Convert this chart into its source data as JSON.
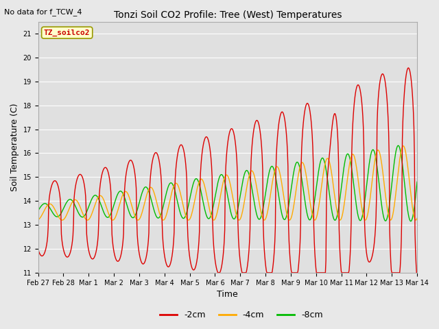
{
  "title": "Tonzi Soil CO2 Profile: Tree (West) Temperatures",
  "subtitle": "No data for f_TCW_4",
  "xlabel": "Time",
  "ylabel": "Soil Temperature (C)",
  "ylim": [
    11.0,
    21.5
  ],
  "yticks": [
    11.0,
    12.0,
    13.0,
    14.0,
    15.0,
    16.0,
    17.0,
    18.0,
    19.0,
    20.0,
    21.0
  ],
  "legend_label_box": "TZ_soilco2",
  "series": {
    "2cm": {
      "color": "#dd0000",
      "label": "-2cm",
      "linewidth": 1.0
    },
    "4cm": {
      "color": "#ffaa00",
      "label": "-4cm",
      "linewidth": 1.0
    },
    "8cm": {
      "color": "#00bb00",
      "label": "-8cm",
      "linewidth": 1.0
    }
  },
  "bg_color": "#e8e8e8",
  "plot_bg_color": "#e0e0e0",
  "grid_color": "#ffffff",
  "xtick_labels": [
    "Feb 27",
    "Feb 28",
    "Mar 1",
    "Mar 2",
    "Mar 3",
    "Mar 4",
    "Mar 5",
    "Mar 6",
    "Mar 7",
    "Mar 8",
    "Mar 9",
    "Mar 10",
    "Mar 11",
    "Mar 12",
    "Mar 13",
    "Mar 14"
  ],
  "xtick_positions": [
    0,
    1,
    2,
    3,
    4,
    5,
    6,
    7,
    8,
    9,
    10,
    11,
    12,
    13,
    14,
    15
  ],
  "figsize": [
    6.4,
    4.8
  ],
  "dpi": 100
}
